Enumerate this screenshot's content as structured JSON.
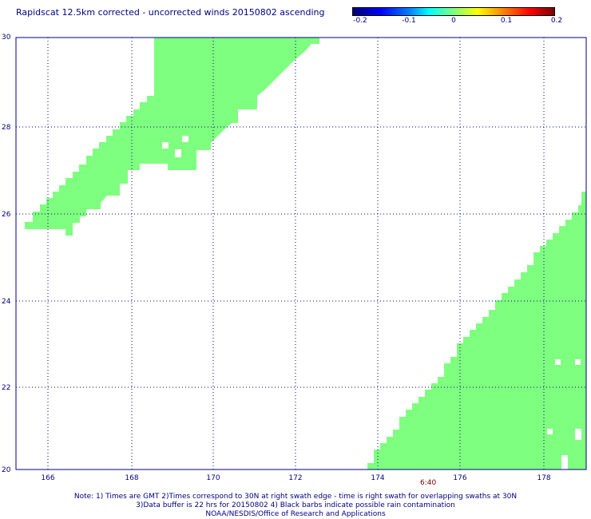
{
  "title": "Rapidscat 12.5km corrected - uncorrected winds 20150802 ascending",
  "colorbar": {
    "ticks": [
      "-0.2",
      "-0.1",
      "0",
      "0.1",
      "0.2"
    ]
  },
  "map": {
    "x_ticks": [
      "166",
      "168",
      "170",
      "172",
      "174",
      "176",
      "178"
    ],
    "y_ticks": [
      "30",
      "28",
      "26",
      "24",
      "22",
      "20"
    ],
    "swath_color": "#7fff7f",
    "grid_color": "#000080"
  },
  "timestamp": "6:40",
  "notes": [
    "Note: 1) Times are GMT 2)Times correspond to 30N at right swath edge - time is right swath for overlapping swaths at 30N",
    "3)Data buffer is 22 hrs for 20150802 4) Black barbs indicate possible rain contamination",
    "NOAA/NESDIS/Office of Research and Applications"
  ]
}
